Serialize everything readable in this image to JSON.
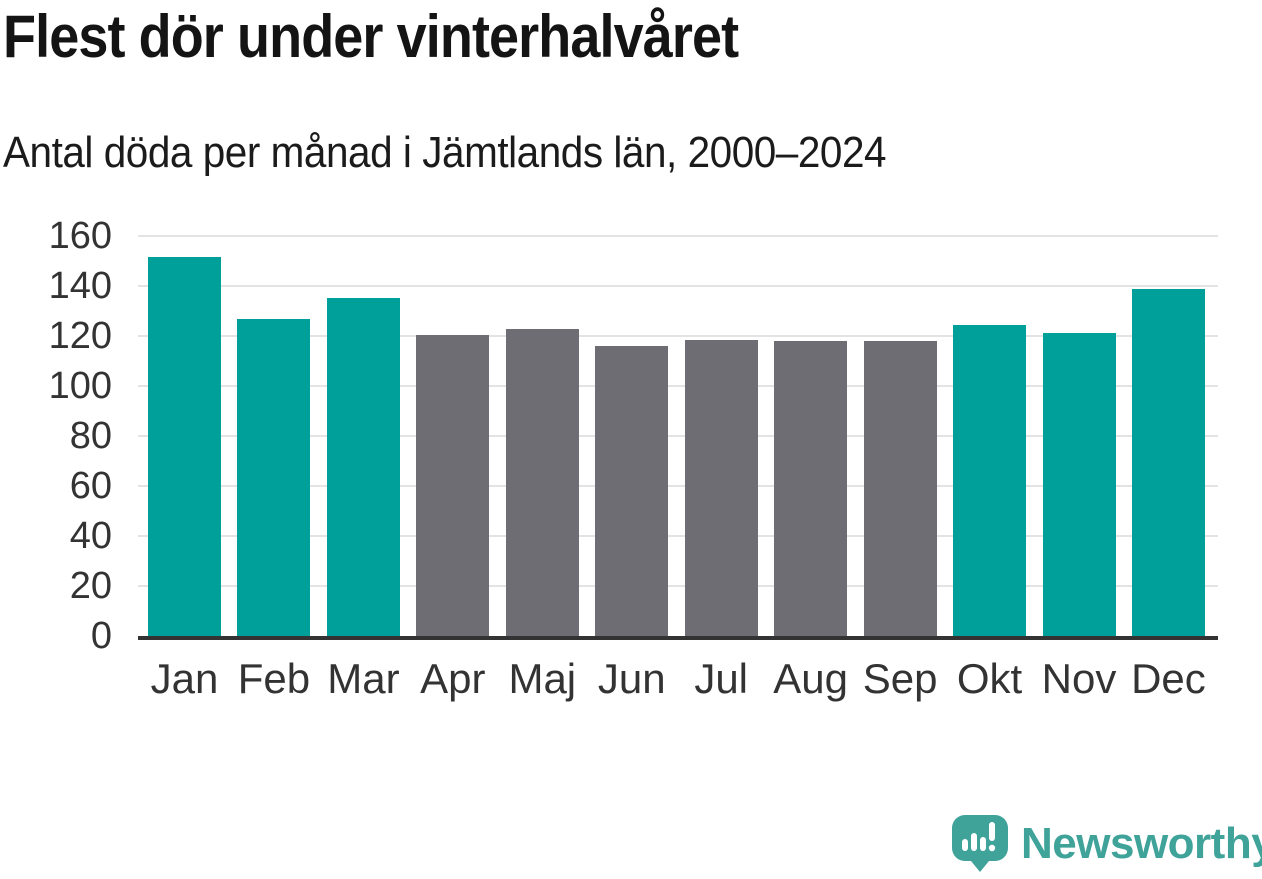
{
  "title": "Flest dör under vinterhalvåret",
  "subtitle": "Antal döda per månad i Jämtlands län, 2000–2024",
  "branding": {
    "logo_icon": "newsworthy-speech-bubble-bar-chart-icon",
    "logo_text": "Newsworthy",
    "logo_color": "#3fa39a"
  },
  "colors": {
    "winter_bar": "#00a09a",
    "summer_bar": "#6e6d73",
    "gridline": "#e3e3e3",
    "axis_line": "#333333",
    "tick_label": "#333333",
    "title_text": "#141414"
  },
  "chart_data": {
    "type": "bar",
    "title": "Flest dör under vinterhalvåret",
    "subtitle": "Antal döda per månad i Jämtlands län, 2000–2024",
    "categories": [
      "Jan",
      "Feb",
      "Mar",
      "Apr",
      "Maj",
      "Jun",
      "Jul",
      "Aug",
      "Sep",
      "Okt",
      "Nov",
      "Dec"
    ],
    "values": [
      151.6,
      127.1,
      135.2,
      120.5,
      123.0,
      116.3,
      118.5,
      118.3,
      118.3,
      124.7,
      121.2,
      139.0
    ],
    "bar_colors": [
      "#00a09a",
      "#00a09a",
      "#00a09a",
      "#6e6d73",
      "#6e6d73",
      "#6e6d73",
      "#6e6d73",
      "#6e6d73",
      "#6e6d73",
      "#00a09a",
      "#00a09a",
      "#00a09a"
    ],
    "xlabel": "",
    "ylabel": "",
    "ylim": [
      0,
      160
    ],
    "yticks": [
      0,
      20,
      40,
      60,
      80,
      100,
      120,
      140,
      160
    ],
    "grid": true,
    "legend": false
  }
}
